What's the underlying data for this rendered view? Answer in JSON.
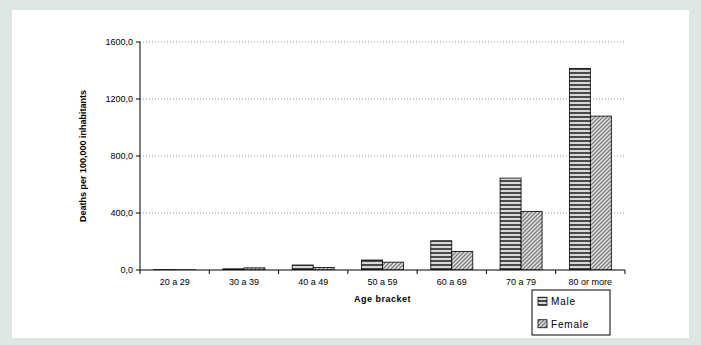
{
  "chart_data": {
    "type": "bar",
    "x_label": "Age bracket",
    "y_label": "Deaths per 100,000 inhabitants",
    "categories": [
      "20 a 29",
      "30 a 39",
      "40 a 49",
      "50 a 59",
      "60 a 69",
      "70 a 79",
      "80 or more"
    ],
    "series": [
      {
        "name": "Male",
        "color": "#4a4a4a",
        "values": [
          2,
          8,
          35,
          70,
          205,
          645,
          1415
        ]
      },
      {
        "name": "Female",
        "color": "#7a7a7a",
        "values": [
          1,
          15,
          18,
          55,
          130,
          410,
          1080
        ]
      }
    ],
    "ylim": [
      0,
      1600
    ],
    "yticks": [
      {
        "value": 0,
        "label": "0,0"
      },
      {
        "value": 400,
        "label": "400,0"
      },
      {
        "value": 800,
        "label": "800,0"
      },
      {
        "value": 1200,
        "label": "1200,0"
      },
      {
        "value": 1600,
        "label": "1600,0"
      }
    ],
    "grid": true,
    "legend": "lower right"
  }
}
